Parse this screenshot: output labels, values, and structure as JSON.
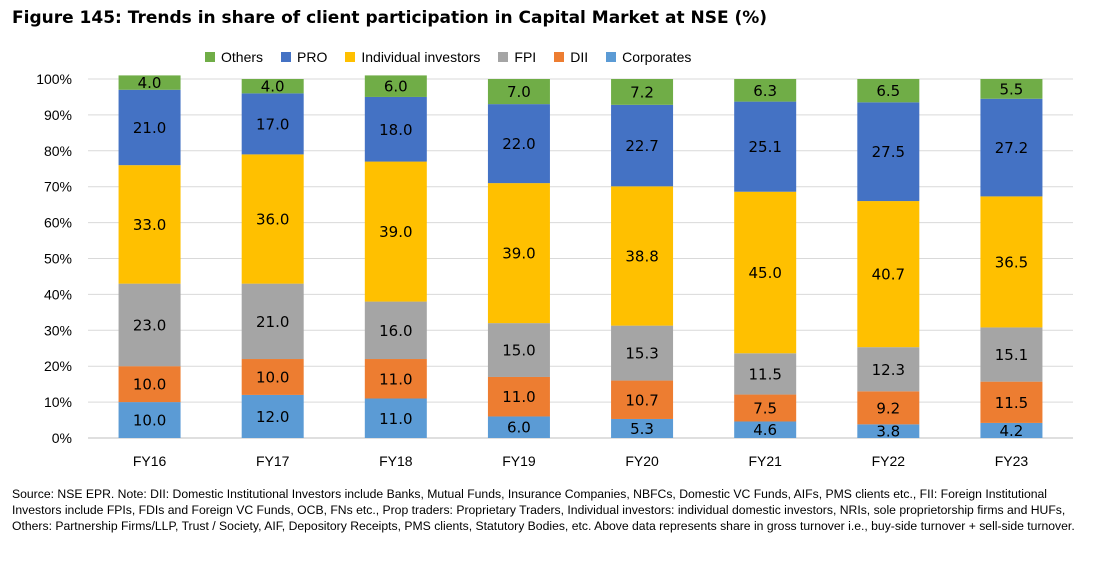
{
  "title": "Figure 145: Trends in share of client participation in Capital Market at NSE (%)",
  "source": "Source: NSE EPR. Note: DII: Domestic Institutional Investors include Banks, Mutual Funds, Insurance Companies, NBFCs, Domestic VC Funds, AIFs, PMS clients etc., FII: Foreign Institutional Investors include FPIs, FDIs and Foreign VC Funds, OCB, FNs etc., Prop traders: Proprietary Traders, Individual investors: individual domestic investors, NRIs, sole proprietorship firms and HUFs, Others: Partnership Firms/LLP, Trust / Society, AIF, Depository Receipts, PMS clients, Statutory Bodies, etc. Above data represents share in gross turnover i.e., buy-side turnover + sell-side turnover.",
  "chart_data": {
    "type": "bar",
    "stacked": true,
    "categories": [
      "FY16",
      "FY17",
      "FY18",
      "FY19",
      "FY20",
      "FY21",
      "FY22",
      "FY23"
    ],
    "y_ticks": [
      "0%",
      "10%",
      "20%",
      "30%",
      "40%",
      "50%",
      "60%",
      "70%",
      "80%",
      "90%",
      "100%"
    ],
    "ylim": [
      0,
      100
    ],
    "grid": true,
    "legend_position": "top",
    "legend_order": [
      "Others",
      "PRO",
      "Individual investors",
      "FPI",
      "DII",
      "Corporates"
    ],
    "series": [
      {
        "name": "Corporates",
        "color": "#5b9bd5",
        "values": [
          10.0,
          12.0,
          11.0,
          6.0,
          5.3,
          4.6,
          3.8,
          4.2
        ],
        "labels": [
          "10.0",
          "12.0",
          "11.0",
          "6.0",
          "5.3",
          "4.6",
          "3.8",
          "4.2"
        ]
      },
      {
        "name": "DII",
        "color": "#ed7d31",
        "values": [
          10.0,
          10.0,
          11.0,
          11.0,
          10.7,
          7.5,
          9.2,
          11.5
        ],
        "labels": [
          "10.0",
          "10.0",
          "11.0",
          "11.0",
          "10.7",
          "7.5",
          "9.2",
          "11.5"
        ]
      },
      {
        "name": "FPI",
        "color": "#a5a5a5",
        "values": [
          23.0,
          21.0,
          16.0,
          15.0,
          15.3,
          11.5,
          12.3,
          15.1
        ],
        "labels": [
          "23.0",
          "21.0",
          "16.0",
          "15.0",
          "15.3",
          "11.5",
          "12.3",
          "15.1"
        ]
      },
      {
        "name": "Individual investors",
        "color": "#ffc000",
        "values": [
          33.0,
          36.0,
          39.0,
          39.0,
          38.8,
          45.0,
          40.7,
          36.5
        ],
        "labels": [
          "33.0",
          "36.0",
          "39.0",
          "39.0",
          "38.8",
          "45.0",
          "40.7",
          "36.5"
        ]
      },
      {
        "name": "PRO",
        "color": "#4472c4",
        "values": [
          21.0,
          17.0,
          18.0,
          22.0,
          22.7,
          25.1,
          27.5,
          27.2
        ],
        "labels": [
          "21.0",
          "17.0",
          "18.0",
          "22.0",
          "22.7",
          "25.1",
          "27.5",
          "27.2"
        ]
      },
      {
        "name": "Others",
        "color": "#70ad47",
        "values": [
          4.0,
          4.0,
          6.0,
          7.0,
          7.2,
          6.3,
          6.5,
          5.5
        ],
        "labels": [
          "4.0",
          "4.0",
          "6.0",
          "7.0",
          "7.2",
          "6.3",
          "6.5",
          "5.5"
        ]
      }
    ]
  }
}
